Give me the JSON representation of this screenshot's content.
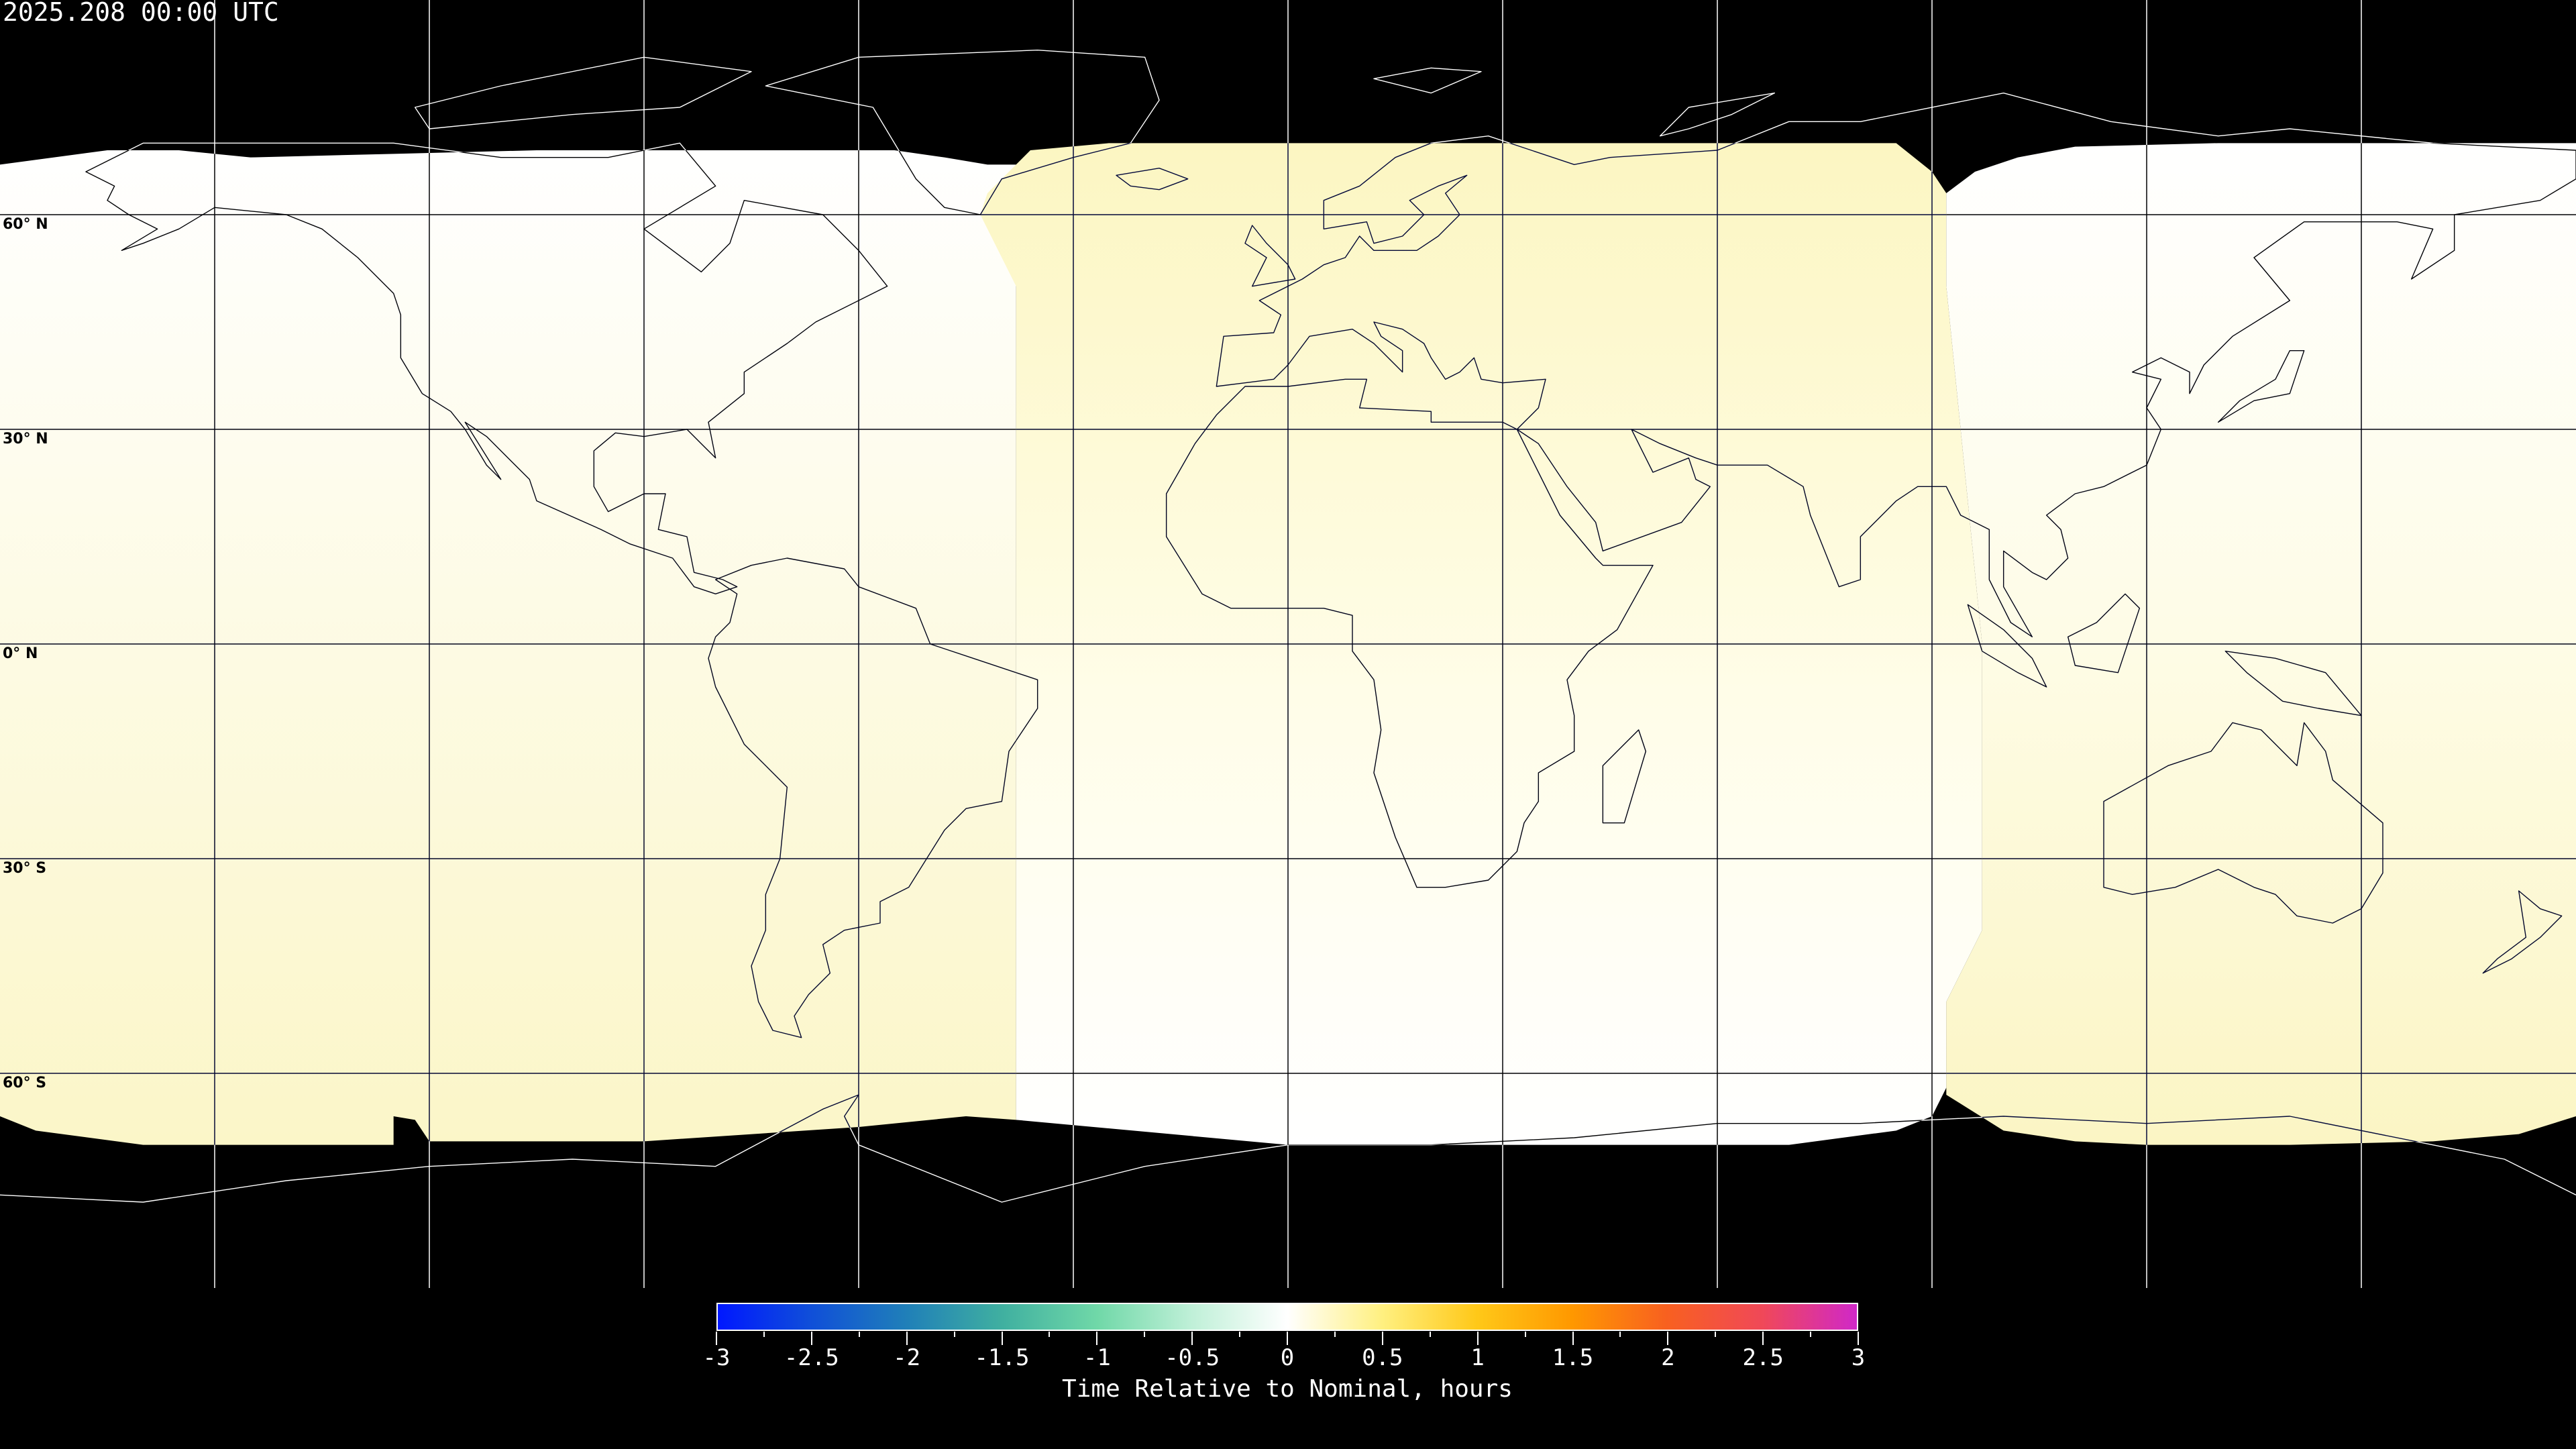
{
  "title": "2025.208 00:00 UTC",
  "map": {
    "projection": "equirectangular",
    "lat_labels": [
      "60° N",
      "30° N",
      "0° N",
      "30° S",
      "60° S"
    ],
    "lat_values": [
      60,
      30,
      0,
      -30,
      -60
    ],
    "lon_grid_step_deg": 30,
    "background": "#000000",
    "coverage_regions": [
      {
        "lon_range": [
          -180,
          -38
        ],
        "north_color": "#ffffff",
        "south_color": "#fbf6c8"
      },
      {
        "lon_range": [
          -38,
          92
        ],
        "north_color": "#fcf6c2",
        "south_color": "#ffffff"
      },
      {
        "lon_range": [
          92,
          180
        ],
        "north_color": "#ffffff",
        "south_color": "#fbf5c4"
      }
    ]
  },
  "colorbar": {
    "title": "Time Relative to Nominal, hours",
    "range": [
      -3,
      3
    ],
    "tick_labels": [
      "-3",
      "-2.5",
      "-2",
      "-1.5",
      "-1",
      "-0.5",
      "0",
      "0.5",
      "1",
      "1.5",
      "2",
      "2.5",
      "3"
    ],
    "colors": [
      "#0018ff",
      "#1050d8",
      "#2080b8",
      "#40b0a0",
      "#70d8a8",
      "#c0f0d8",
      "#ffffff",
      "#fff080",
      "#ffc818",
      "#ff9800",
      "#f86020",
      "#f04858",
      "#d028c8"
    ]
  }
}
